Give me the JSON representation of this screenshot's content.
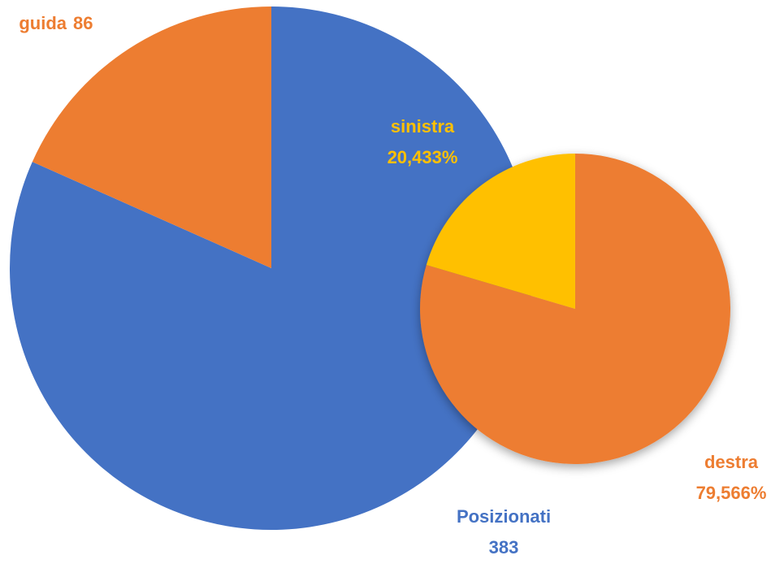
{
  "chart_data": [
    {
      "type": "pie",
      "categories": [
        "Posizionati",
        "guida"
      ],
      "values": [
        383,
        86
      ],
      "colors": [
        "#4472c4",
        "#ed7d31"
      ]
    },
    {
      "type": "pie",
      "categories": [
        "destra",
        "sinistra"
      ],
      "values": [
        79.566,
        20.433
      ],
      "value_labels": [
        "79,566%",
        "20,433%"
      ],
      "colors": [
        "#ed7d31",
        "#ffc000"
      ]
    }
  ]
}
